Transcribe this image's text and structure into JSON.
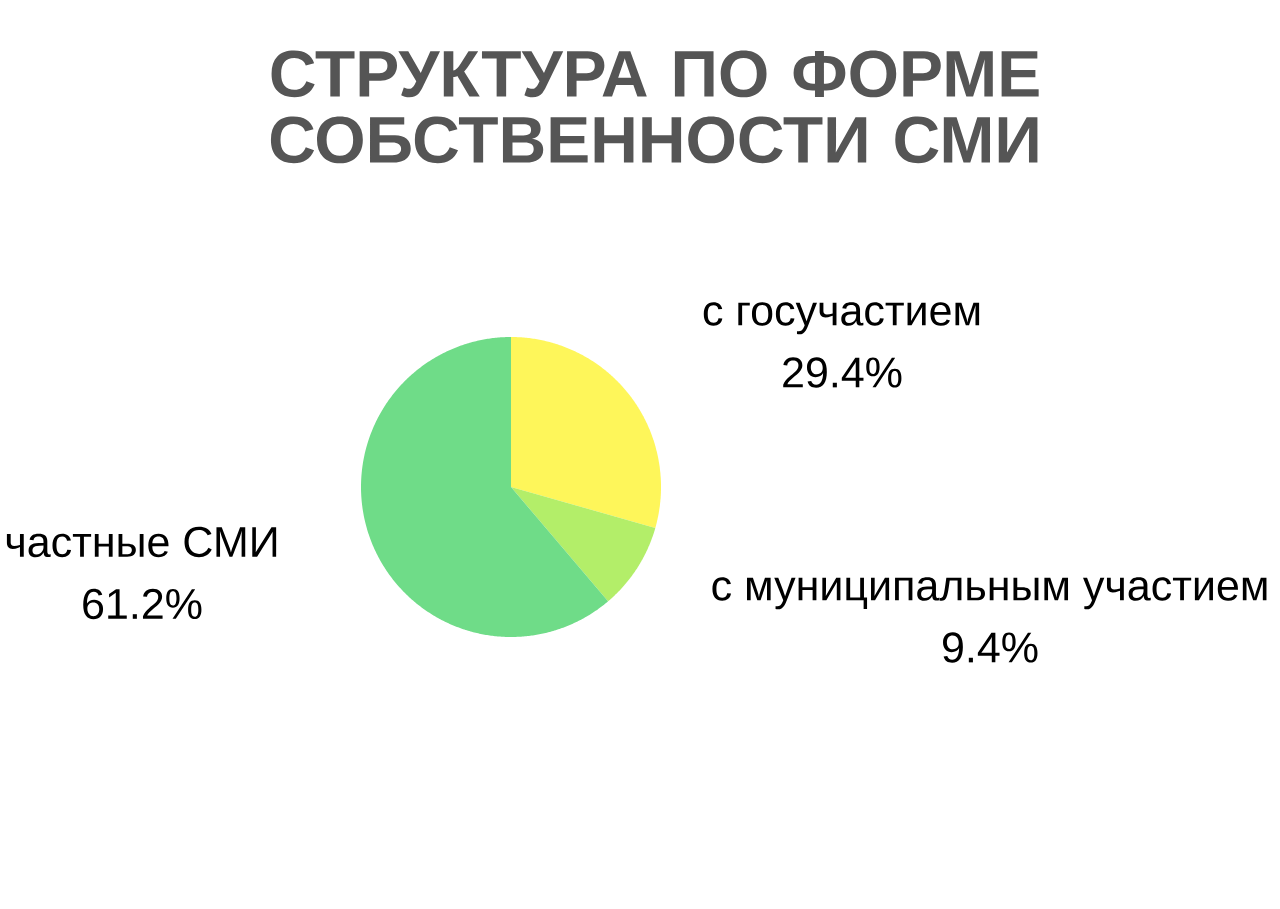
{
  "chart_data": {
    "type": "pie",
    "title": "СТРУКТУРА ПО ФОРМЕ СОБСТВЕННОСТИ СМИ",
    "categories": [
      "с госучастием",
      "с муниципальным участием",
      "частные СМИ"
    ],
    "values": [
      29.4,
      9.4,
      61.2
    ],
    "colors": [
      "#fef65a",
      "#b3ee69",
      "#6fdc88"
    ],
    "value_labels": [
      "29.4%",
      "9.4%",
      "61.2%"
    ]
  }
}
